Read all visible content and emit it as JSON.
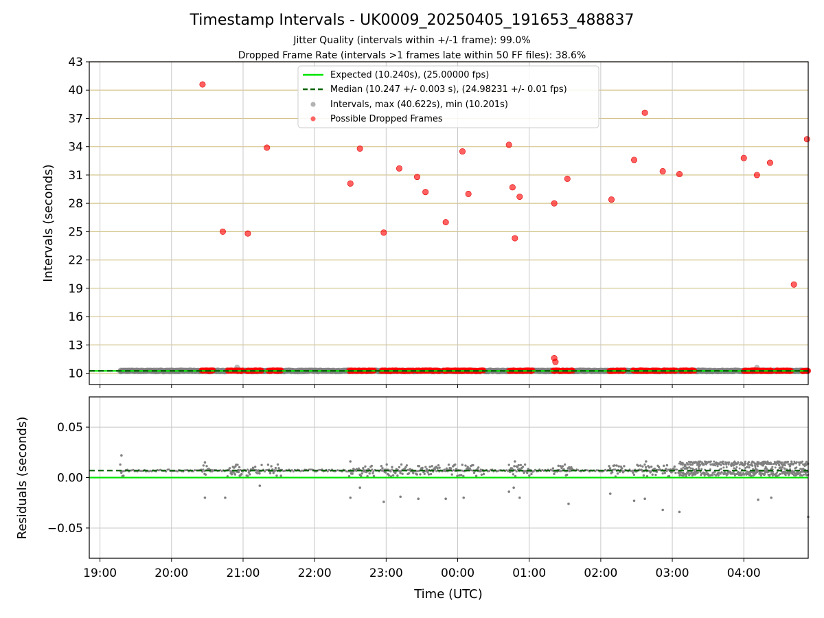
{
  "title": "Timestamp Intervals - UK0009_20250405_191653_488837",
  "subtitle_1": "Jitter Quality (intervals within +/-1 frame): 99.0%",
  "subtitle_2": "Dropped Frame Rate (intervals >1 frames late within 50 FF files): 38.6%",
  "legend": {
    "expected": "Expected (10.240s), (25.00000 fps)",
    "median": "Median (10.247 +/- 0.003 s), (24.98231 +/- 0.01 fps)",
    "intervals": "Intervals, max (40.622s), min (10.201s)",
    "dropped": "Possible Dropped Frames"
  },
  "colors": {
    "expected": "#00e600",
    "median": "#006400",
    "intervals": "#808080",
    "dropped": "#ff0000",
    "hgrid_top": "#d4c48a",
    "grid": "#c8c8c8"
  },
  "chart_data": [
    {
      "type": "scatter",
      "ylabel": "Intervals (seconds)",
      "ylim": [
        8.8,
        43
      ],
      "xlim": [
        "18:51",
        "04:54"
      ],
      "yticks": [
        "10",
        "13",
        "16",
        "19",
        "22",
        "25",
        "28",
        "31",
        "34",
        "37",
        "40",
        "43"
      ],
      "expected": 10.24,
      "median": 10.247,
      "dropped_points": [
        {
          "x": "20:26",
          "y": 40.6
        },
        {
          "x": "20:43",
          "y": 25.0
        },
        {
          "x": "21:04",
          "y": 24.8
        },
        {
          "x": "21:20",
          "y": 33.9
        },
        {
          "x": "22:30",
          "y": 30.1
        },
        {
          "x": "22:38",
          "y": 33.8
        },
        {
          "x": "22:58",
          "y": 24.9
        },
        {
          "x": "23:11",
          "y": 31.7
        },
        {
          "x": "23:26",
          "y": 30.8
        },
        {
          "x": "23:33",
          "y": 29.2
        },
        {
          "x": "23:50",
          "y": 26.0
        },
        {
          "x": "00:04",
          "y": 33.5
        },
        {
          "x": "00:09",
          "y": 29.0
        },
        {
          "x": "00:43",
          "y": 34.2
        },
        {
          "x": "00:46",
          "y": 29.7
        },
        {
          "x": "00:48",
          "y": 24.3
        },
        {
          "x": "00:52",
          "y": 28.7
        },
        {
          "x": "01:21",
          "y": 28.0
        },
        {
          "x": "01:21",
          "y": 11.6
        },
        {
          "x": "01:22",
          "y": 11.2
        },
        {
          "x": "01:32",
          "y": 30.6
        },
        {
          "x": "02:09",
          "y": 28.4
        },
        {
          "x": "02:28",
          "y": 32.6
        },
        {
          "x": "02:37",
          "y": 37.6
        },
        {
          "x": "02:52",
          "y": 31.4
        },
        {
          "x": "03:06",
          "y": 31.1
        },
        {
          "x": "04:00",
          "y": 32.8
        },
        {
          "x": "04:11",
          "y": 31.0
        },
        {
          "x": "04:22",
          "y": 32.3
        },
        {
          "x": "04:42",
          "y": 19.4
        },
        {
          "x": "04:53",
          "y": 34.8
        }
      ],
      "baseline_clusters": [
        [
          "20:25",
          "20:35"
        ],
        [
          "20:47",
          "21:00"
        ],
        [
          "21:03",
          "21:16"
        ],
        [
          "21:21",
          "21:32"
        ],
        [
          "22:29",
          "22:50"
        ],
        [
          "22:56",
          "23:10"
        ],
        [
          "23:11",
          "23:23"
        ],
        [
          "23:25",
          "23:45"
        ],
        [
          "23:48",
          "24:02"
        ],
        [
          "24:03",
          "24:22"
        ],
        [
          "24:43",
          "25:03"
        ],
        [
          "25:20",
          "25:37"
        ],
        [
          "26:07",
          "26:20"
        ],
        [
          "26:27",
          "26:38"
        ],
        [
          "26:38",
          "26:50"
        ],
        [
          "26:52",
          "27:03"
        ],
        [
          "27:07",
          "27:19"
        ],
        [
          "28:00",
          "28:24"
        ],
        [
          "28:27",
          "28:40"
        ],
        [
          "28:49",
          "28:54"
        ]
      ],
      "baseline_range": [
        "19:17",
        "28:54"
      ]
    },
    {
      "type": "scatter",
      "xlabel": "Time (UTC)",
      "ylabel": "Residuals (seconds)",
      "ylim": [
        -0.08,
        0.08
      ],
      "yticks": [
        0.05,
        0.0,
        -0.05
      ],
      "ytick_labels": [
        "0.05",
        "0.00",
        "−0.05"
      ],
      "xticks": [
        "19:00",
        "20:00",
        "21:00",
        "22:00",
        "23:00",
        "00:00",
        "01:00",
        "02:00",
        "03:00",
        "04:00"
      ],
      "expected_residual": 0.0,
      "median_residual": 0.007,
      "outliers": [
        {
          "x": "19:18",
          "y": 0.022
        },
        {
          "x": "20:28",
          "y": -0.02
        },
        {
          "x": "20:45",
          "y": -0.02
        },
        {
          "x": "21:14",
          "y": -0.008
        },
        {
          "x": "22:30",
          "y": -0.02
        },
        {
          "x": "22:38",
          "y": -0.01
        },
        {
          "x": "22:58",
          "y": -0.024
        },
        {
          "x": "23:12",
          "y": -0.019
        },
        {
          "x": "23:27",
          "y": -0.021
        },
        {
          "x": "23:50",
          "y": -0.021
        },
        {
          "x": "24:05",
          "y": -0.02
        },
        {
          "x": "24:43",
          "y": -0.014
        },
        {
          "x": "24:47",
          "y": -0.01
        },
        {
          "x": "24:52",
          "y": -0.02
        },
        {
          "x": "25:33",
          "y": -0.026
        },
        {
          "x": "26:08",
          "y": -0.016
        },
        {
          "x": "26:28",
          "y": -0.023
        },
        {
          "x": "26:37",
          "y": -0.021
        },
        {
          "x": "26:52",
          "y": -0.032
        },
        {
          "x": "27:06",
          "y": -0.034
        },
        {
          "x": "28:12",
          "y": -0.022
        },
        {
          "x": "28:23",
          "y": -0.02
        },
        {
          "x": "28:54",
          "y": -0.039
        },
        {
          "x": "22:30",
          "y": 0.016
        },
        {
          "x": "24:48",
          "y": 0.016
        },
        {
          "x": "26:38",
          "y": 0.016
        },
        {
          "x": "20:28",
          "y": 0.015
        }
      ],
      "dense_band": {
        "x": [
          "27:05",
          "28:54"
        ],
        "y": [
          0.002,
          0.016
        ]
      }
    }
  ]
}
